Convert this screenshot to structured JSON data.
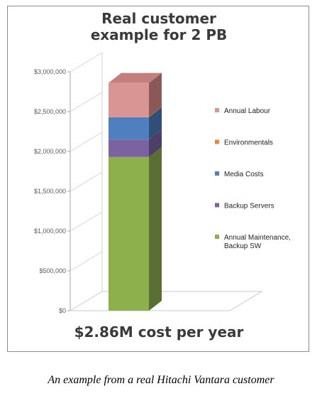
{
  "chart_data": {
    "type": "bar",
    "stacked": true,
    "three_d": true,
    "title": "Real customer\nexample for 2 PB",
    "categories": [
      ""
    ],
    "yticks": [
      "$0",
      "$500,000",
      "$1,000,000",
      "$1,500,000",
      "$2,000,000",
      "$2,500,000",
      "$3,000,000"
    ],
    "ylim": [
      0,
      3000000
    ],
    "legend_position": "right",
    "grid": false,
    "series": [
      {
        "name": "Annual Maintenance, Backup SW",
        "values": [
          1930000
        ],
        "color": "#8db04c",
        "side": "#5a6f33",
        "top": "#a9c76f"
      },
      {
        "name": "Backup Servers",
        "values": [
          220000
        ],
        "color": "#7b63a1",
        "side": "#4e3f68",
        "top": "#9a86bd"
      },
      {
        "name": "Media Costs",
        "values": [
          280000
        ],
        "color": "#4f7fbf",
        "side": "#304f78",
        "top": "#7199cf"
      },
      {
        "name": "Environmentals",
        "values": [
          5000
        ],
        "color": "#e9863f",
        "side": "#a65a25",
        "top": "#f0a46f"
      },
      {
        "name": "Annual Labour",
        "values": [
          425000
        ],
        "color": "#d99594",
        "side": "#8b5858",
        "top": "#c37f7e"
      }
    ],
    "legend_order": [
      4,
      3,
      2,
      1,
      0
    ],
    "annotation": "$2.86M cost per year"
  },
  "caption": "An example from a real Hitachi Vantara customer"
}
